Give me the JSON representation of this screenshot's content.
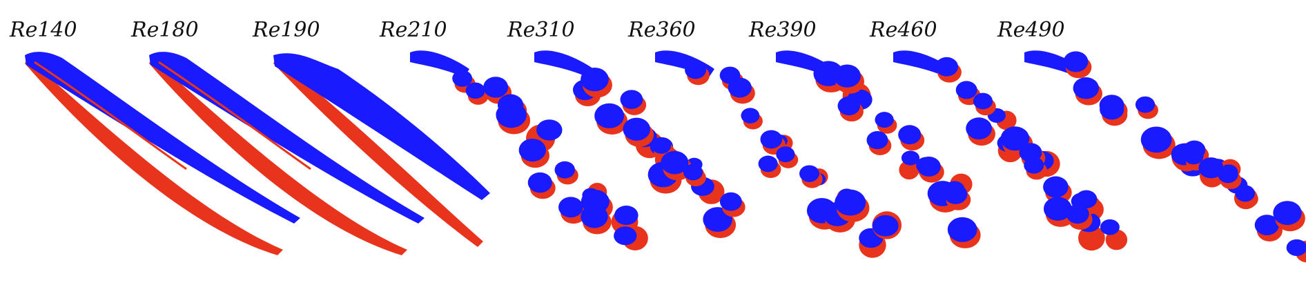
{
  "figure": {
    "panels": [
      {
        "label": "Re140",
        "regime": "steady-pair"
      },
      {
        "label": "Re180",
        "regime": "steady-pair"
      },
      {
        "label": "Re190",
        "regime": "wavy"
      },
      {
        "label": "Re210",
        "regime": "shedding"
      },
      {
        "label": "Re310",
        "regime": "shedding"
      },
      {
        "label": "Re360",
        "regime": "shedding"
      },
      {
        "label": "Re390",
        "regime": "shedding"
      },
      {
        "label": "Re460",
        "regime": "shedding"
      },
      {
        "label": "Re490",
        "regime": "chaotic"
      }
    ],
    "colors": {
      "positive": "#1a1aff",
      "negative": "#e8341c",
      "background": "#ffffff"
    }
  }
}
